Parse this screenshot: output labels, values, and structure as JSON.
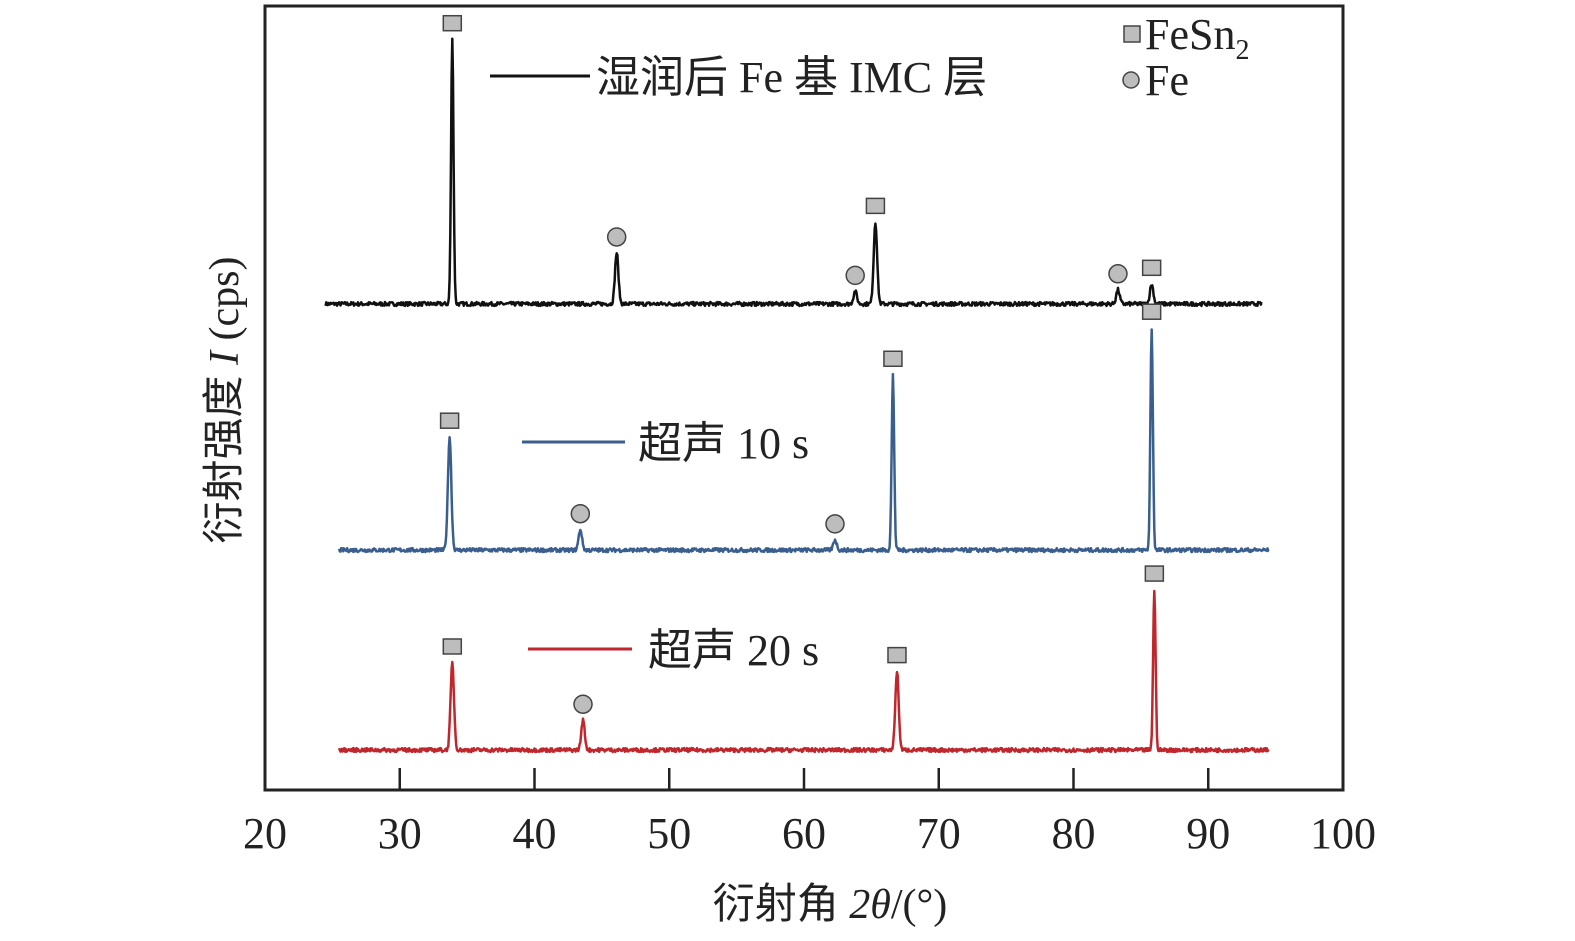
{
  "chart_data": {
    "type": "line",
    "title": "",
    "xlabel": {
      "prefix": "衍射角 ",
      "var": "2θ",
      "suffix": "/(°)"
    },
    "ylabel": {
      "prefix": "衍射强度 ",
      "var": "I",
      "suffix": " (cps)"
    },
    "xlim": [
      20,
      100
    ],
    "ylim": [
      0,
      100
    ],
    "xticks": [
      20,
      30,
      40,
      50,
      60,
      70,
      80,
      90,
      100
    ],
    "yticks_shown": false,
    "grid": false,
    "phase_legend": {
      "placement": "top-right",
      "entries": [
        {
          "label": "FeSn",
          "subscript": "2",
          "marker": "square",
          "color": "#bdbdbd"
        },
        {
          "label": "Fe",
          "subscript": "",
          "marker": "circle",
          "color": "#bdbdbd"
        }
      ]
    },
    "series": [
      {
        "name": "湿润后 Fe 基 IMC 层",
        "color": "#111111",
        "x_range": [
          24.5,
          94
        ],
        "baseline": 62,
        "peaks": [
          {
            "x": 33.9,
            "y": 95.7,
            "phase": "FeSn2"
          },
          {
            "x": 46.1,
            "y": 68.5,
            "phase": "Fe"
          },
          {
            "x": 63.8,
            "y": 63.6,
            "phase": "Fe"
          },
          {
            "x": 65.3,
            "y": 72.4,
            "phase": "FeSn2"
          },
          {
            "x": 83.3,
            "y": 63.8,
            "phase": "Fe"
          },
          {
            "x": 85.8,
            "y": 64.5,
            "phase": "FeSn2"
          }
        ]
      },
      {
        "name": "超声 10 s",
        "color": "#3a5f8f",
        "x_range": [
          25.5,
          94.5
        ],
        "baseline": 30.6,
        "peaks": [
          {
            "x": 33.7,
            "y": 45.0,
            "phase": "FeSn2"
          },
          {
            "x": 43.4,
            "y": 33.2,
            "phase": "Fe"
          },
          {
            "x": 62.3,
            "y": 31.9,
            "phase": "Fe"
          },
          {
            "x": 66.6,
            "y": 52.9,
            "phase": "FeSn2"
          },
          {
            "x": 85.8,
            "y": 58.9,
            "phase": "FeSn2"
          }
        ]
      },
      {
        "name": "超声 20 s",
        "color": "#c0272d",
        "x_range": [
          25.5,
          94.5
        ],
        "baseline": 5.1,
        "peaks": [
          {
            "x": 33.9,
            "y": 16.2,
            "phase": "FeSn2"
          },
          {
            "x": 43.6,
            "y": 8.9,
            "phase": "Fe"
          },
          {
            "x": 66.9,
            "y": 15.1,
            "phase": "FeSn2"
          },
          {
            "x": 86.0,
            "y": 25.5,
            "phase": "FeSn2"
          }
        ]
      }
    ]
  }
}
